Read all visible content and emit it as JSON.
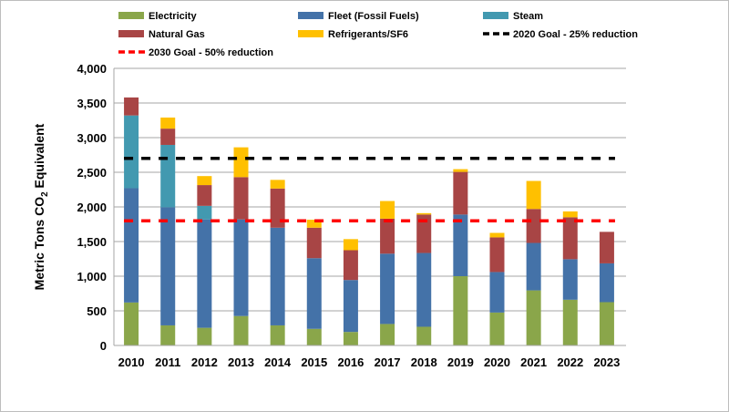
{
  "chart_data": {
    "type": "bar",
    "stacked": true,
    "title": "",
    "xlabel": "",
    "ylabel": "Metric Tons CO",
    "ylabel_sub": "2",
    "ylabel_suffix": " Equivalent",
    "ylim": [
      0,
      4000
    ],
    "yticks": [
      0,
      500,
      1000,
      1500,
      2000,
      2500,
      3000,
      3500,
      4000
    ],
    "ytick_labels": [
      "0",
      "500",
      "1,000",
      "1,500",
      "2,000",
      "2,500",
      "3,000",
      "3,500",
      "4,000"
    ],
    "grid": true,
    "legend_position": "top",
    "categories": [
      "2010",
      "2011",
      "2012",
      "2013",
      "2014",
      "2015",
      "2016",
      "2017",
      "2018",
      "2019",
      "2020",
      "2021",
      "2022",
      "2023"
    ],
    "series": [
      {
        "name": "Electricity",
        "color": "#8aa64a",
        "values": [
          620,
          290,
          255,
          425,
          290,
          240,
          195,
          310,
          270,
          1000,
          475,
          795,
          660,
          625
        ]
      },
      {
        "name": "Fleet (Fossil Fuels)",
        "color": "#4472a8",
        "values": [
          1650,
          1705,
          1565,
          1395,
          1410,
          1020,
          750,
          1015,
          1065,
          890,
          585,
          685,
          585,
          560
        ]
      },
      {
        "name": "Steam",
        "color": "#4299b0",
        "values": [
          1050,
          900,
          195,
          0,
          0,
          0,
          0,
          0,
          0,
          0,
          0,
          0,
          0,
          0
        ]
      },
      {
        "name": "Natural Gas",
        "color": "#a84545",
        "values": [
          260,
          235,
          300,
          610,
          565,
          440,
          430,
          505,
          555,
          615,
          500,
          490,
          605,
          455
        ]
      },
      {
        "name": "Refrigerants/SF6",
        "color": "#ffc000",
        "values": [
          0,
          160,
          130,
          430,
          125,
          115,
          160,
          255,
          20,
          40,
          65,
          405,
          85,
          0
        ]
      }
    ],
    "reference_lines": [
      {
        "name": "2020 Goal - 25% reduction",
        "value": 2700,
        "color": "#000000"
      },
      {
        "name": "2030 Goal - 50% reduction",
        "value": 1800,
        "color": "#ff0000"
      }
    ]
  }
}
